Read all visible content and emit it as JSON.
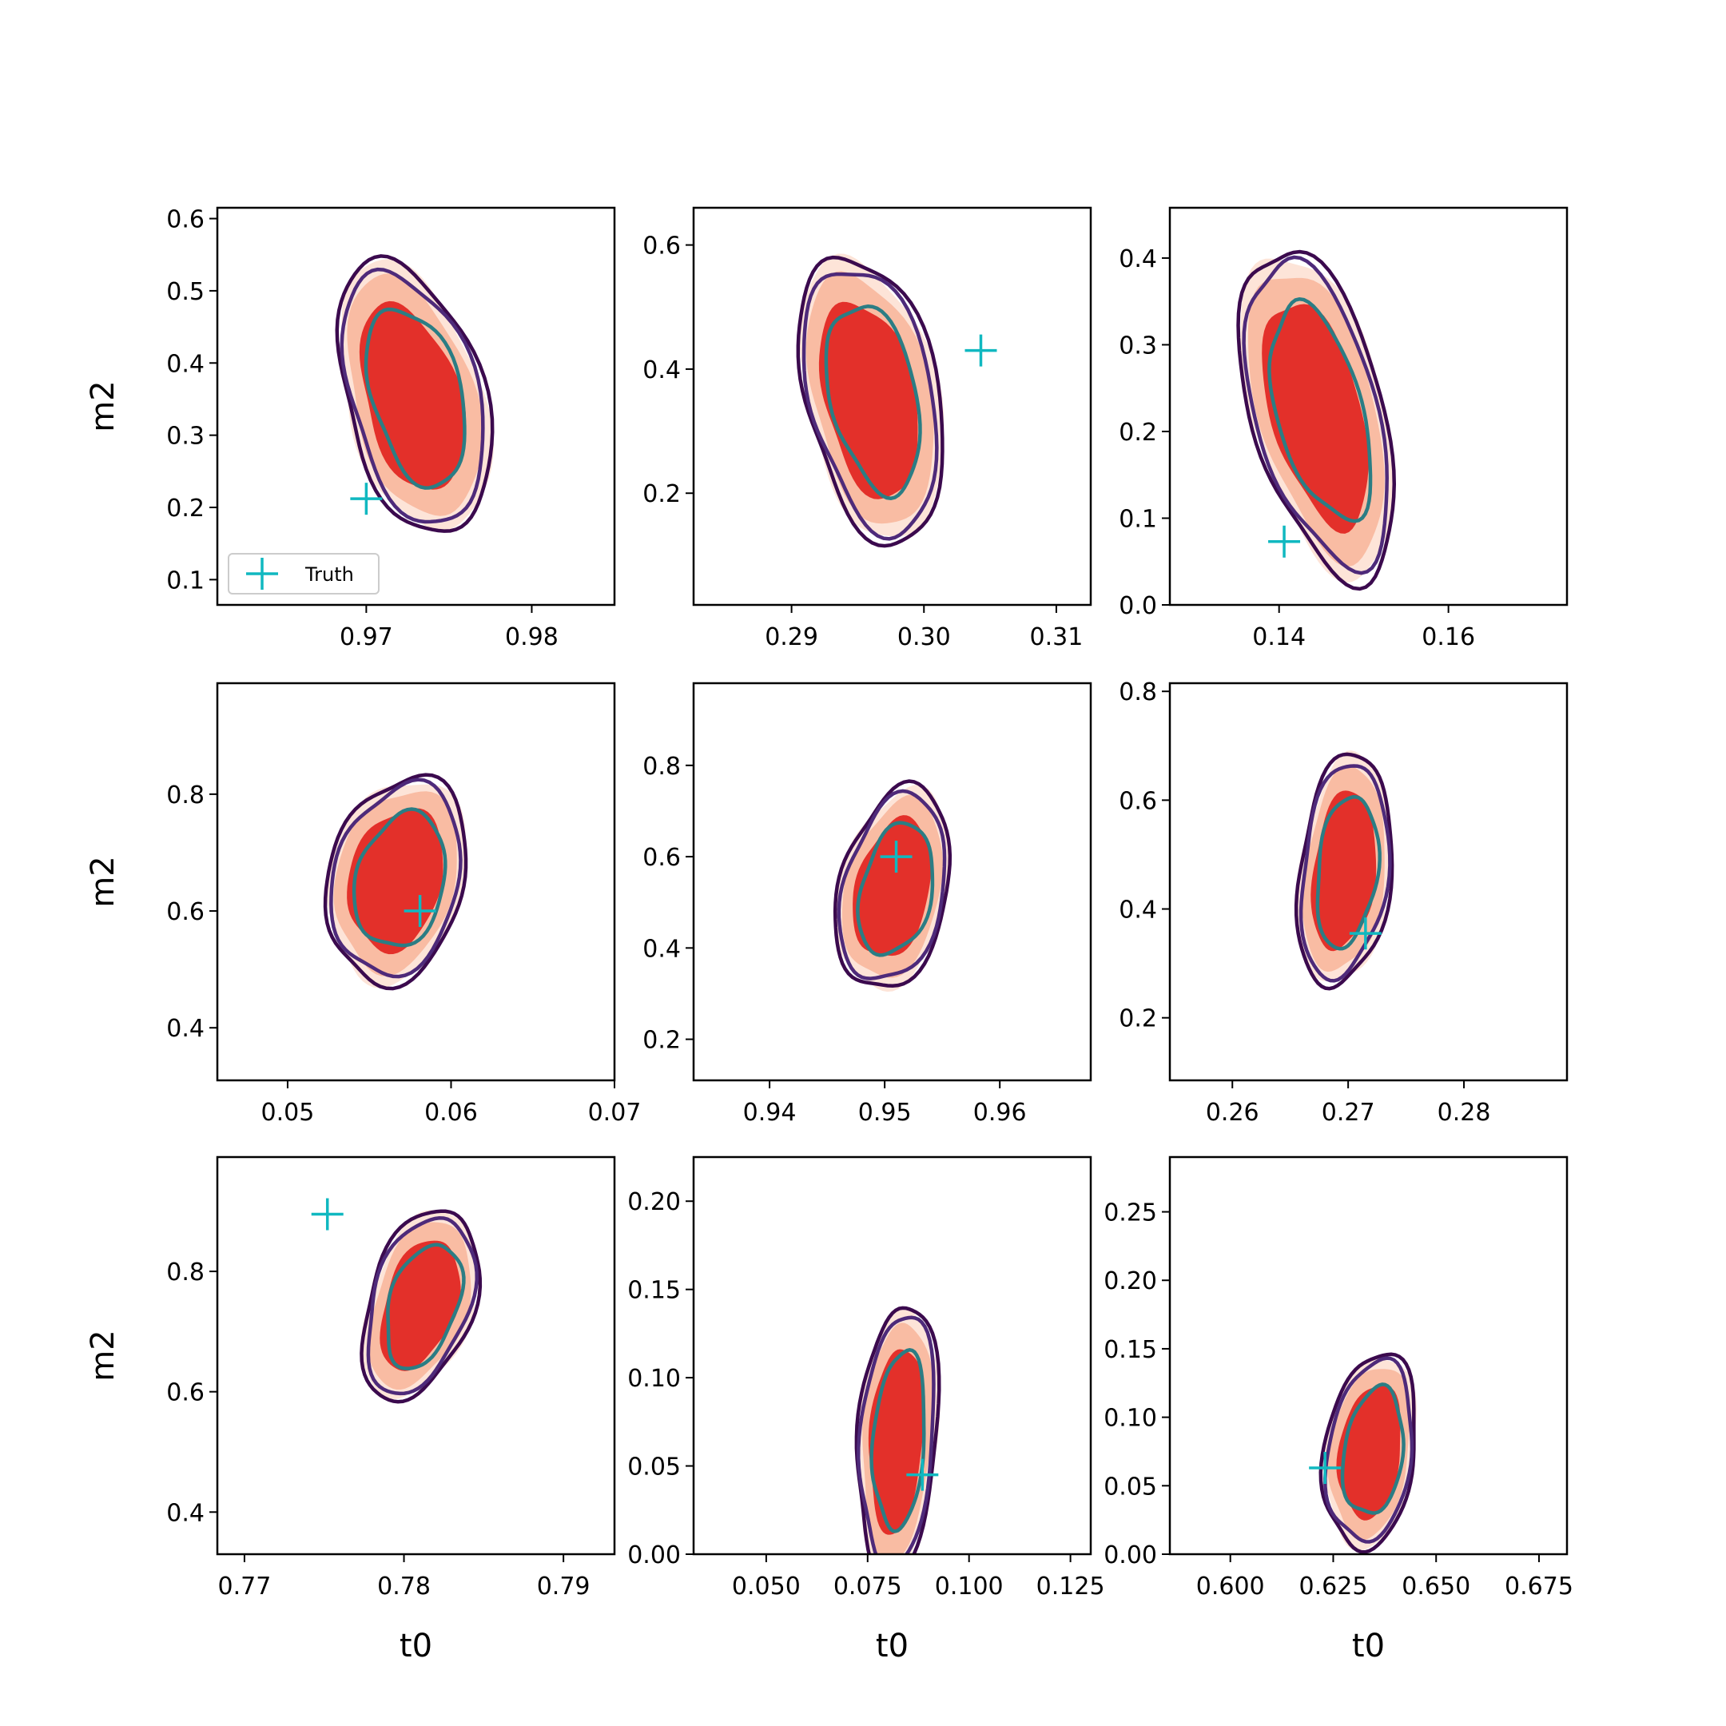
{
  "colors": {
    "fill_levels": [
      "#fde4d8",
      "#f9bca3",
      "#e3302a"
    ],
    "outer_contour": "#3b0a4e",
    "middle_contour": "#4e2a7a",
    "inner_contour": "#2b7d84",
    "truth_marker": "#10b8c0"
  },
  "chart_data": [
    {
      "type": "contour",
      "xlabel": "",
      "ylabel": "m2",
      "xlim": [
        0.961,
        0.985
      ],
      "ylim": [
        0.065,
        0.615
      ],
      "xticks": [
        0.97,
        0.98
      ],
      "xtick_labels": [
        "0.97",
        "0.98"
      ],
      "yticks": [
        0.1,
        0.2,
        0.3,
        0.4,
        0.5,
        0.6
      ],
      "ytick_labels": [
        "0.1",
        "0.2",
        "0.3",
        "0.4",
        "0.5",
        "0.6"
      ],
      "center": [
        0.9725,
        0.35
      ],
      "spread": [
        0.0066,
        0.19
      ],
      "tilt": 0.62,
      "skew": 0.1,
      "truth": [
        0.97,
        0.212
      ],
      "legend": {
        "label": "Truth",
        "position": "lower-left"
      }
    },
    {
      "type": "contour",
      "xlabel": "",
      "ylabel": "",
      "xlim": [
        0.2826,
        0.3126
      ],
      "ylim": [
        0.02,
        0.66
      ],
      "xticks": [
        0.29,
        0.3,
        0.31
      ],
      "xtick_labels": [
        "0.29",
        "0.30",
        "0.31"
      ],
      "yticks": [
        0.2,
        0.4,
        0.6
      ],
      "ytick_labels": [
        "0.2",
        "0.4",
        "0.6"
      ],
      "center": [
        0.2955,
        0.35
      ],
      "spread": [
        0.008,
        0.23
      ],
      "tilt": 0.5,
      "skew": 0.12,
      "truth": [
        0.3043,
        0.43
      ],
      "legend": null
    },
    {
      "type": "contour",
      "xlabel": "",
      "ylabel": "",
      "xlim": [
        0.1271,
        0.174
      ],
      "ylim": [
        0.0,
        0.458
      ],
      "xticks": [
        0.14,
        0.16
      ],
      "xtick_labels": [
        "0.14",
        "0.16"
      ],
      "yticks": [
        0.0,
        0.1,
        0.2,
        0.3,
        0.4
      ],
      "ytick_labels": [
        "0.0",
        "0.1",
        "0.2",
        "0.3",
        "0.4"
      ],
      "center": [
        0.144,
        0.22
      ],
      "spread": [
        0.0125,
        0.19
      ],
      "tilt": 0.6,
      "skew": 0.08,
      "truth": [
        0.1406,
        0.073
      ],
      "legend": null
    },
    {
      "type": "contour",
      "xlabel": "",
      "ylabel": "m2",
      "xlim": [
        0.0457,
        0.07
      ],
      "ylim": [
        0.31,
        0.99
      ],
      "xticks": [
        0.05,
        0.06,
        0.07
      ],
      "xtick_labels": [
        "0.05",
        "0.06",
        "0.07"
      ],
      "yticks": [
        0.4,
        0.6,
        0.8
      ],
      "ytick_labels": [
        "0.4",
        "0.6",
        "0.8"
      ],
      "center": [
        0.0565,
        0.655
      ],
      "spread": [
        0.0066,
        0.175
      ],
      "tilt": -0.55,
      "skew": 0.05,
      "truth": [
        0.0581,
        0.6
      ],
      "legend": null
    },
    {
      "type": "contour",
      "xlabel": "",
      "ylabel": "",
      "xlim": [
        0.9334,
        0.9679
      ],
      "ylim": [
        0.11,
        0.98
      ],
      "xticks": [
        0.94,
        0.95,
        0.96
      ],
      "xtick_labels": [
        "0.94",
        "0.95",
        "0.96"
      ],
      "yticks": [
        0.2,
        0.4,
        0.6,
        0.8
      ],
      "ytick_labels": [
        "0.2",
        "0.4",
        "0.6",
        "0.8"
      ],
      "center": [
        0.9505,
        0.53
      ],
      "spread": [
        0.0075,
        0.22
      ],
      "tilt": -0.5,
      "skew": 0.06,
      "truth": [
        0.951,
        0.6
      ],
      "legend": null
    },
    {
      "type": "contour",
      "xlabel": "",
      "ylabel": "",
      "xlim": [
        0.2546,
        0.2889
      ],
      "ylim": [
        0.085,
        0.815
      ],
      "xticks": [
        0.26,
        0.27,
        0.28
      ],
      "xtick_labels": [
        "0.26",
        "0.27",
        "0.28"
      ],
      "yticks": [
        0.2,
        0.4,
        0.6,
        0.8
      ],
      "ytick_labels": [
        "0.2",
        "0.4",
        "0.6",
        "0.8"
      ],
      "center": [
        0.2695,
        0.47
      ],
      "spread": [
        0.0063,
        0.21
      ],
      "tilt": -0.25,
      "skew": 0.05,
      "truth": [
        0.2715,
        0.355
      ],
      "legend": null
    },
    {
      "type": "contour",
      "xlabel": "t0",
      "ylabel": "m2",
      "xlim": [
        0.7683,
        0.7932
      ],
      "ylim": [
        0.33,
        0.99
      ],
      "xticks": [
        0.77,
        0.78,
        0.79
      ],
      "xtick_labels": [
        "0.77",
        "0.78",
        "0.79"
      ],
      "yticks": [
        0.4,
        0.6,
        0.8
      ],
      "ytick_labels": [
        "0.4",
        "0.6",
        "0.8"
      ],
      "center": [
        0.781,
        0.745
      ],
      "spread": [
        0.0052,
        0.16
      ],
      "tilt": -0.72,
      "skew": 0.0,
      "truth": [
        0.7752,
        0.895
      ],
      "legend": null
    },
    {
      "type": "contour",
      "xlabel": "t0",
      "ylabel": "",
      "xlim": [
        0.0321,
        0.13
      ],
      "ylim": [
        0.0,
        0.225
      ],
      "xticks": [
        0.05,
        0.075,
        0.1,
        0.125
      ],
      "xtick_labels": [
        "0.050",
        "0.075",
        "0.100",
        "0.125"
      ],
      "yticks": [
        0.0,
        0.05,
        0.1,
        0.15,
        0.2
      ],
      "ytick_labels": [
        "0.00",
        "0.05",
        "0.10",
        "0.15",
        "0.20"
      ],
      "center": [
        0.0815,
        0.065
      ],
      "spread": [
        0.0155,
        0.075
      ],
      "tilt": -0.15,
      "skew": 0.1,
      "truth": [
        0.0885,
        0.045
      ],
      "legend": null
    },
    {
      "type": "contour",
      "xlabel": "t0",
      "ylabel": "",
      "xlim": [
        0.5853,
        0.6818
      ],
      "ylim": [
        0.0,
        0.29
      ],
      "xticks": [
        0.6,
        0.625,
        0.65,
        0.675
      ],
      "xtick_labels": [
        "0.600",
        "0.625",
        "0.650",
        "0.675"
      ],
      "yticks": [
        0.0,
        0.05,
        0.1,
        0.15,
        0.2,
        0.25
      ],
      "ytick_labels": [
        "0.00",
        "0.05",
        "0.10",
        "0.15",
        "0.20",
        "0.25"
      ],
      "center": [
        0.634,
        0.075
      ],
      "spread": [
        0.0175,
        0.07
      ],
      "tilt": -0.3,
      "skew": 0.0,
      "truth": [
        0.623,
        0.063
      ],
      "legend": null
    }
  ]
}
